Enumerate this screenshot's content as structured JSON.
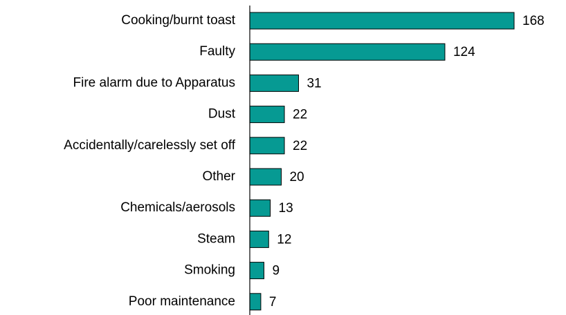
{
  "chart_data": {
    "type": "bar",
    "orientation": "horizontal",
    "categories": [
      "Cooking/burnt toast",
      "Faulty",
      "Fire alarm due to Apparatus",
      "Dust",
      "Accidentally/carelessly set off",
      "Other",
      "Chemicals/aerosols",
      "Steam",
      "Smoking",
      "Poor maintenance"
    ],
    "values": [
      168,
      124,
      31,
      22,
      22,
      20,
      13,
      12,
      9,
      7
    ],
    "color": "#069a93"
  }
}
